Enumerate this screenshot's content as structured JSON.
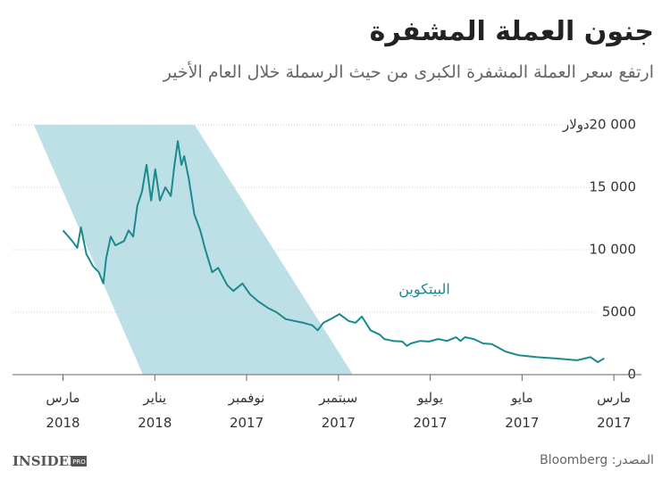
{
  "chart_data": {
    "type": "line",
    "title": "جنون العملة المشفرة",
    "subtitle": "ارتفع سعر العملة المشفرة الكبرى من حيث الرسملة خلال العام الأخير",
    "y_unit": "دولار",
    "xlim": [
      16.1,
      2.4
    ],
    "xticks": [
      {
        "value": 3,
        "label": "مارس\n2017"
      },
      {
        "value": 5,
        "label": "مايو\n2017"
      },
      {
        "value": 7,
        "label": "يوليو\n2017"
      },
      {
        "value": 9,
        "label": "سبتمبر\n2017"
      },
      {
        "value": 11,
        "label": "نوفمبر\n2017"
      },
      {
        "value": 13,
        "label": "يناير\n2018"
      },
      {
        "value": 15,
        "label": "مارس\n2018"
      }
    ],
    "ylim": [
      0,
      20000
    ],
    "yticks": [
      0,
      5000,
      {
        "value": 10000,
        "label": "10 000"
      },
      {
        "value": 15000,
        "label": "15 000"
      },
      {
        "value": 20000,
        "label": "20 000"
      }
    ],
    "grid": true,
    "series": [
      {
        "name": "البيتكوين",
        "color": "#1b8a8c",
        "x": [
          3.21,
          3.35,
          3.51,
          3.8,
          4.29,
          4.68,
          5.07,
          5.36,
          5.66,
          5.85,
          6.05,
          6.24,
          6.34,
          6.44,
          6.63,
          6.83,
          7.03,
          7.22,
          7.42,
          7.51,
          7.61,
          7.81,
          8.0,
          8.1,
          8.3,
          8.49,
          8.63,
          8.78,
          8.98,
          9.17,
          9.33,
          9.45,
          9.57,
          9.76,
          9.96,
          10.15,
          10.35,
          10.54,
          10.74,
          10.93,
          11.09,
          11.29,
          11.42,
          11.62,
          11.75,
          11.91,
          12.01,
          12.14,
          12.26,
          12.36,
          12.42,
          12.5,
          12.58,
          12.65,
          12.77,
          12.89,
          12.99,
          13.08,
          13.18,
          13.28,
          13.38,
          13.47,
          13.57,
          13.67,
          13.86,
          13.96,
          14.06,
          14.12,
          14.22,
          14.35,
          14.49,
          14.61,
          14.69,
          14.8,
          14.88,
          15.0
        ],
        "values": [
          1300,
          1000,
          1400,
          1150,
          1300,
          1400,
          1550,
          1850,
          2450,
          2500,
          2850,
          3000,
          2700,
          3000,
          2700,
          2850,
          2650,
          2700,
          2500,
          2300,
          2650,
          2700,
          2850,
          3200,
          3550,
          4650,
          4150,
          4300,
          4850,
          4450,
          4150,
          3550,
          3950,
          4150,
          4300,
          4450,
          5000,
          5350,
          5850,
          6450,
          7300,
          6700,
          7150,
          8550,
          8200,
          10150,
          11550,
          12850,
          15700,
          17500,
          16800,
          18700,
          16550,
          14300,
          15000,
          13950,
          16450,
          13950,
          16800,
          14650,
          13550,
          11050,
          11550,
          10700,
          10350,
          11050,
          9300,
          7300,
          8200,
          8700,
          9650,
          11800,
          10150,
          10700,
          11050,
          11550
        ]
      }
    ],
    "footer": {
      "source": "المصدر: Bloomberg",
      "logo": "INSIDER",
      "logo_badge": "PRO"
    }
  }
}
